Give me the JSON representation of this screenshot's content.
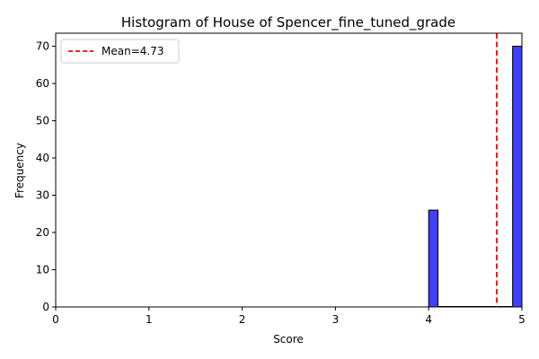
{
  "chart_data": {
    "type": "bar",
    "title": "Histogram of House of Spencer_fine_tuned_grade",
    "xlabel": "Score",
    "ylabel": "Frequency",
    "xlim": [
      0,
      5
    ],
    "ylim": [
      0,
      73.5
    ],
    "xticks": [
      "0",
      "1",
      "2",
      "3",
      "4",
      "5"
    ],
    "yticks": [
      "0",
      "10",
      "20",
      "30",
      "40",
      "50",
      "60",
      "70"
    ],
    "bins": [
      {
        "x0": 4.0,
        "x1": 4.1,
        "count": 26
      },
      {
        "x0": 4.1,
        "x1": 4.9,
        "count": 0
      },
      {
        "x0": 4.9,
        "x1": 5.0,
        "count": 70
      }
    ],
    "mean": 4.73,
    "legend": {
      "label": "Mean=4.73",
      "placement": "upper-left"
    },
    "colors": {
      "bar_fill": "#3f3fff",
      "bar_edge": "#000000",
      "mean_line": "#ff0000"
    },
    "grid": false
  }
}
